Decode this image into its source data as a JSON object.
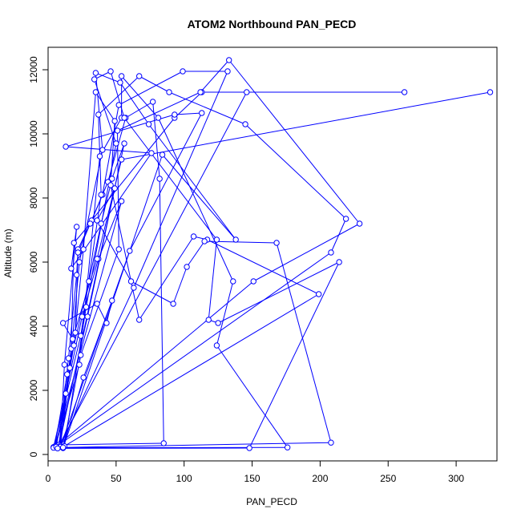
{
  "chart_data": {
    "type": "line",
    "title": "ATOM2 Northbound PAN_PECD",
    "xlabel": "PAN_PECD",
    "ylabel": "Altitude (m)",
    "xlim": [
      0,
      330
    ],
    "ylim": [
      -200,
      12700
    ],
    "xticks": [
      0,
      50,
      100,
      150,
      200,
      250,
      300
    ],
    "yticks": [
      0,
      2000,
      4000,
      6000,
      8000,
      10000,
      12000
    ],
    "xtick_labels": [
      "0",
      "50",
      "100",
      "150",
      "200",
      "250",
      "300"
    ],
    "ytick_labels": [
      "0",
      "2000",
      "4000",
      "6000",
      "8000",
      "10000",
      "12000"
    ],
    "series_color": "#0000ff",
    "marker": "open-circle",
    "grid": false,
    "legend": "none",
    "series": [
      {
        "x": [
          4,
          13,
          25,
          37,
          54,
          5,
          14,
          30,
          39,
          47,
          56,
          8,
          15,
          21,
          22,
          32,
          93,
          113,
          262,
          146,
          8,
          17,
          19,
          31,
          44,
          57,
          77,
          82,
          85,
          8,
          20,
          22,
          40,
          52,
          99,
          132,
          63,
          9,
          12,
          21,
          17,
          76,
          13,
          93,
          113,
          60,
          9,
          16,
          23,
          40,
          35,
          53,
          74,
          138,
          84,
          11,
          24,
          52,
          51,
          112,
          133,
          229,
          151,
          5,
          23,
          38,
          54,
          54,
          81,
          136,
          124,
          176,
          4,
          24,
          39,
          37,
          67,
          89,
          145,
          219,
          208,
          6,
          19,
          26,
          35,
          49,
          46,
          67,
          107,
          117,
          199,
          12,
          28,
          50,
          34,
          46,
          56,
          124,
          118,
          125,
          214,
          148,
          7,
          29,
          49,
          36,
          61,
          92,
          102,
          115,
          168,
          208,
          11,
          26,
          47,
          43,
          36,
          11,
          18,
          36,
          54,
          325
        ],
        "y": [
          230,
          1900,
          4300,
          6100,
          7900,
          250,
          2500,
          5400,
          7200,
          8600,
          9700,
          260,
          3000,
          5600,
          6400,
          7300,
          10500,
          11300,
          11300,
          11300,
          280,
          3300,
          6600,
          7200,
          8500,
          10500,
          11000,
          8600,
          350,
          300,
          3800,
          6300,
          8100,
          10900,
          11950,
          11950,
          5200,
          270,
          2800,
          7100,
          5800,
          9400,
          9600,
          10600,
          10650,
          6350,
          240,
          2700,
          6000,
          9500,
          11900,
          11600,
          10300,
          6700,
          9350,
          200,
          3100,
          6400,
          10100,
          11300,
          12300,
          7200,
          5400,
          220,
          2800,
          9300,
          10500,
          11800,
          10500,
          5400,
          3400,
          220,
          210,
          3700,
          8100,
          10600,
          11800,
          11300,
          10300,
          7350,
          6300,
          240,
          3400,
          6400,
          11300,
          10400,
          8400,
          4200,
          6800,
          6700,
          5000,
          260,
          4600,
          9700,
          11700,
          11950,
          10500,
          6700,
          4200,
          4100,
          6000,
          200,
          190,
          4300,
          8300,
          7300,
          5400,
          4700,
          5850,
          6650,
          6600,
          370,
          220,
          2400,
          4800,
          4100,
          4700,
          4100,
          3600,
          6100,
          9200,
          11300
        ],
        "label": ""
      }
    ]
  }
}
